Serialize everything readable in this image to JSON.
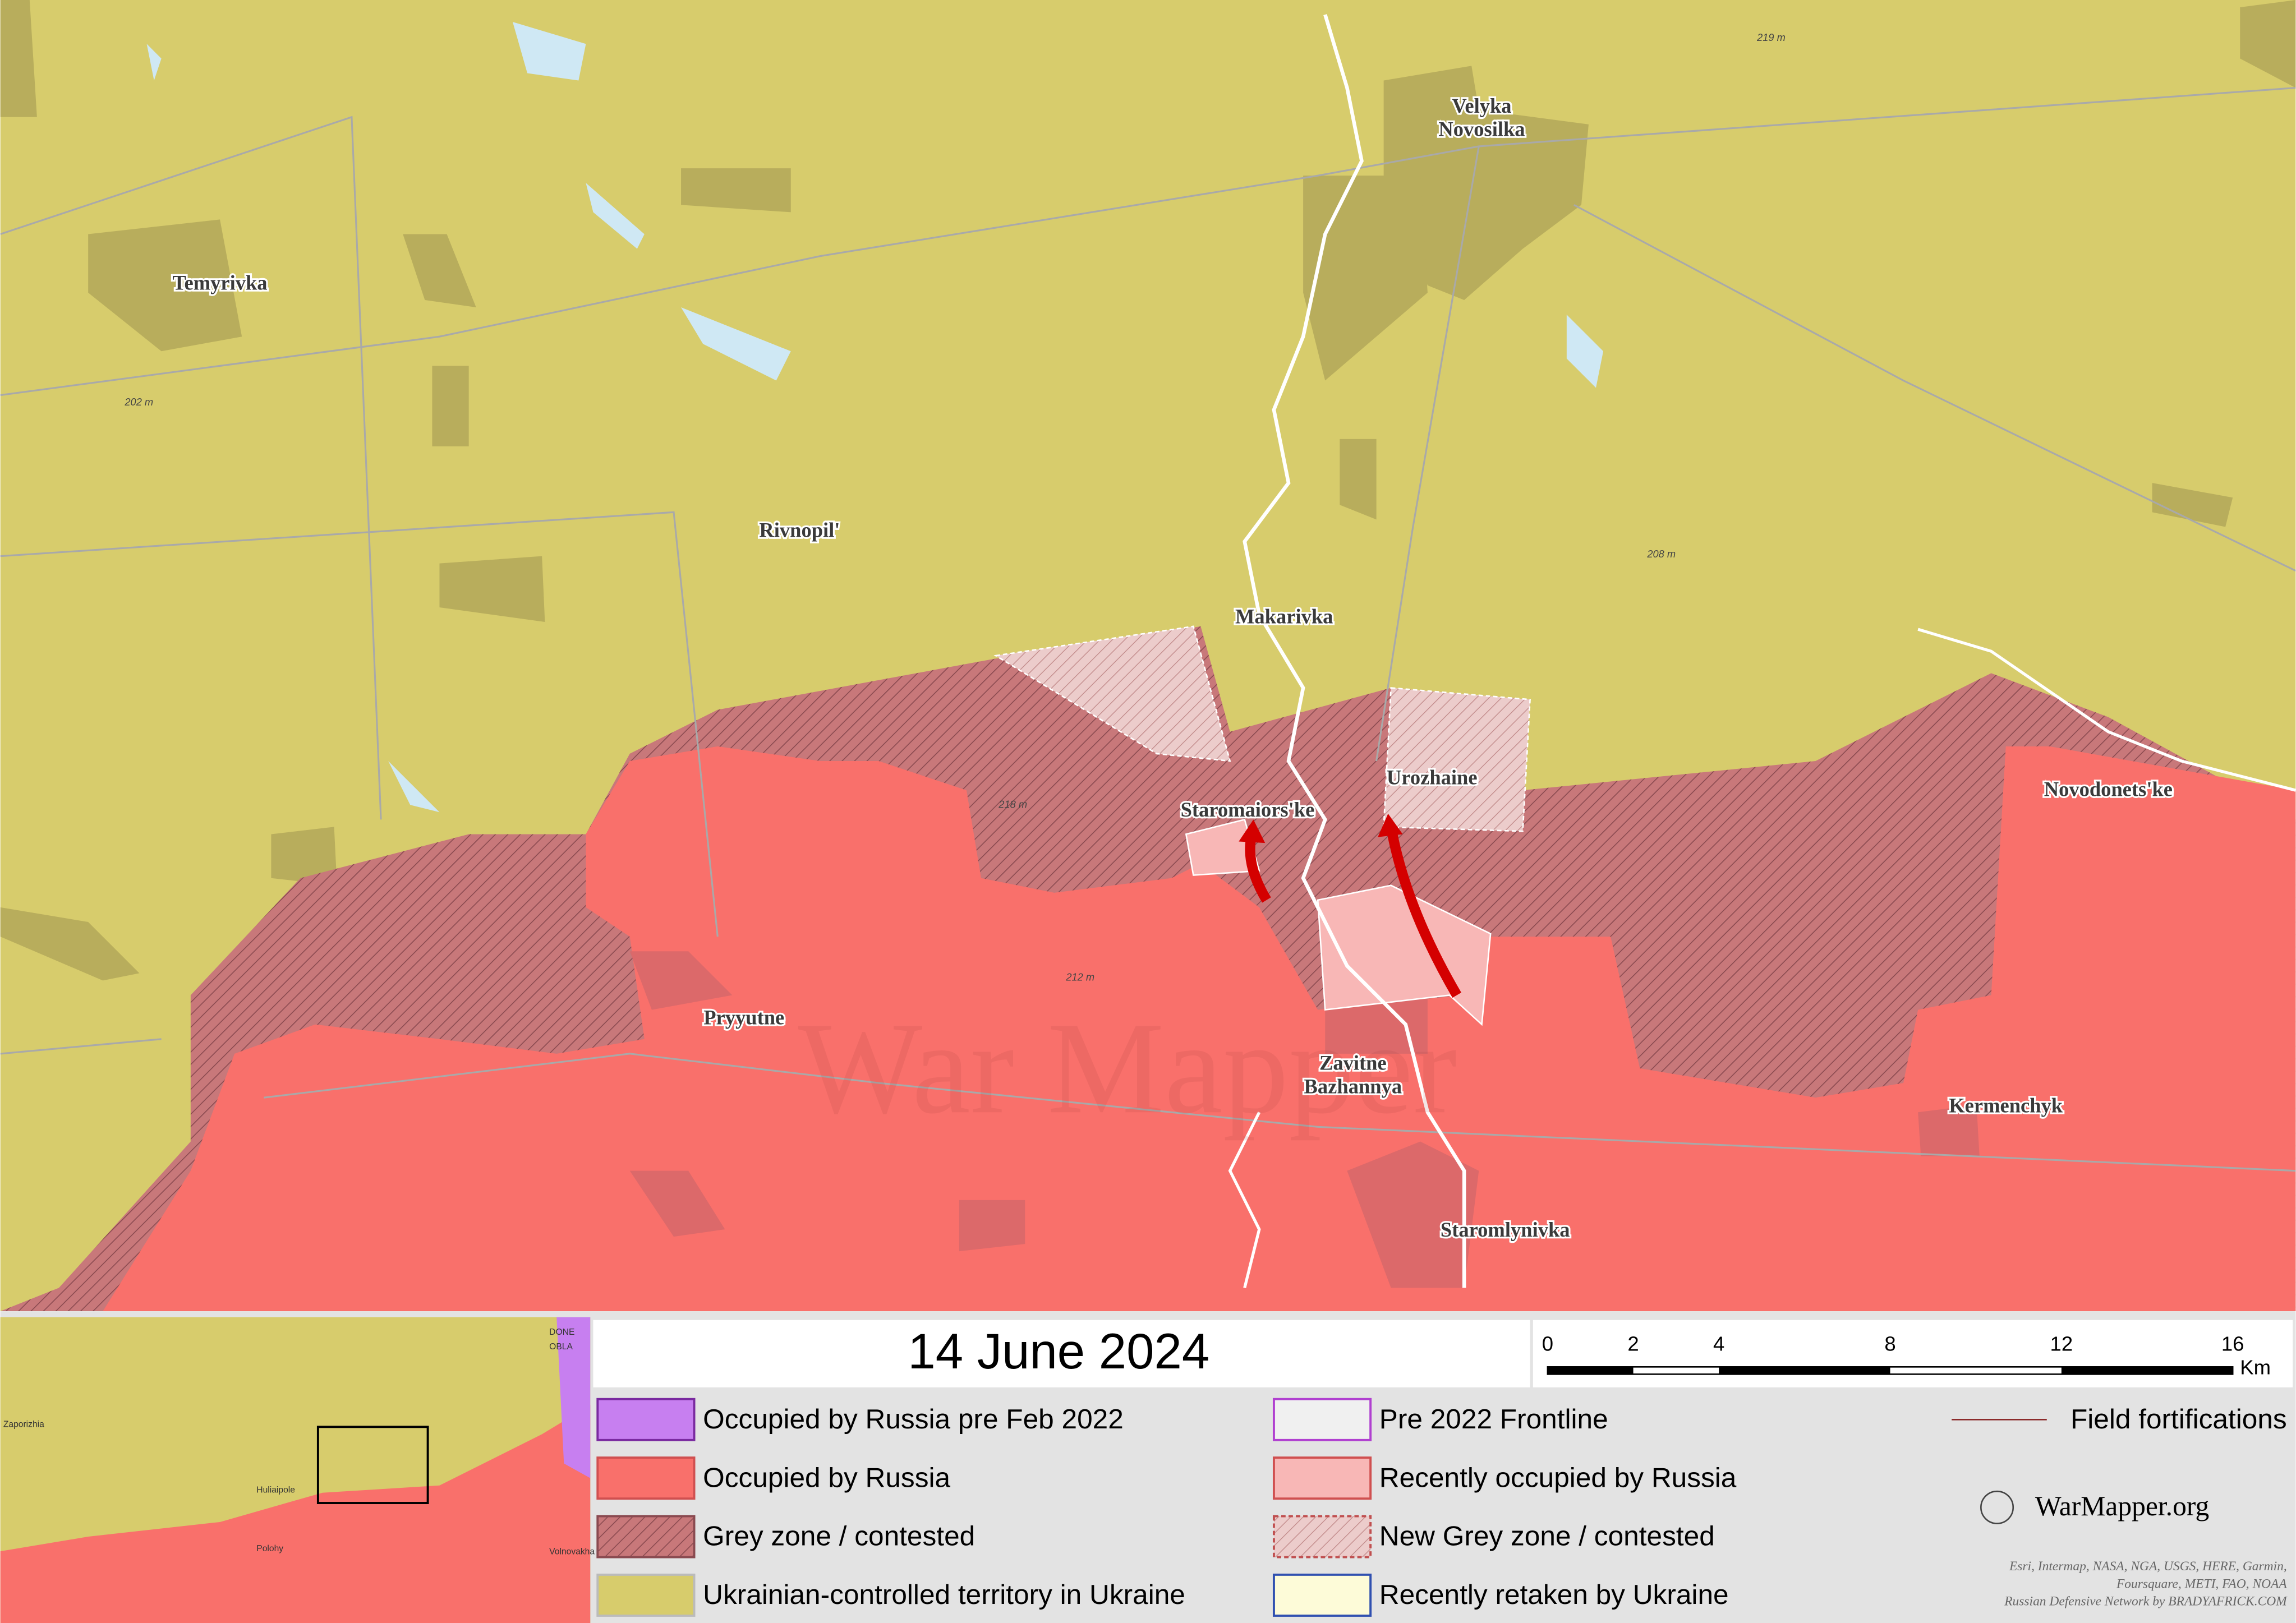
{
  "date": "14 June 2024",
  "places": [
    {
      "lines": [
        "Velyka",
        "Novosilka"
      ]
    },
    {
      "lines": [
        "Temyrivka"
      ]
    },
    {
      "lines": [
        "Rivnopil'"
      ]
    },
    {
      "lines": [
        "Makarivka"
      ]
    },
    {
      "lines": [
        "Staromaiors'ke"
      ]
    },
    {
      "lines": [
        "Urozhaine"
      ]
    },
    {
      "lines": [
        "Novodonets'ke"
      ]
    },
    {
      "lines": [
        "Pryyutne"
      ]
    },
    {
      "lines": [
        "Zavitne",
        "Bazhannya"
      ]
    },
    {
      "lines": [
        "Kermenchyk"
      ]
    },
    {
      "lines": [
        "Staromlynivka"
      ]
    }
  ],
  "elevations": [
    "219 m",
    "202 m",
    "208 m",
    "212 m",
    "218 m"
  ],
  "watermark": "War Mapper",
  "inset": {
    "labels": [
      "Zaporizhia",
      "Huliaipole",
      "Polohy",
      "Volnovakha",
      "DONE",
      "OBLA"
    ]
  },
  "legend": [
    "Occupied by Russia pre Feb 2022",
    "Occupied by Russia",
    "Grey zone / contested",
    "Ukrainian-controlled territory in Ukraine",
    "Pre 2022 Frontline",
    "Recently occupied by Russia",
    "New Grey zone / contested",
    "Recently retaken by Ukraine"
  ],
  "field_fortifications": "Field fortifications",
  "scale": {
    "ticks": [
      0,
      2,
      4,
      8,
      12,
      16
    ],
    "unit": "Km"
  },
  "brand": "WarMapper.org",
  "credits": [
    "Esri, Intermap, NASA, NGA, USGS, HERE, Garmin,",
    "Foursquare, METI, FAO, NOAA",
    "Russian Defensive Network by BRADYAFRICK.COM"
  ]
}
